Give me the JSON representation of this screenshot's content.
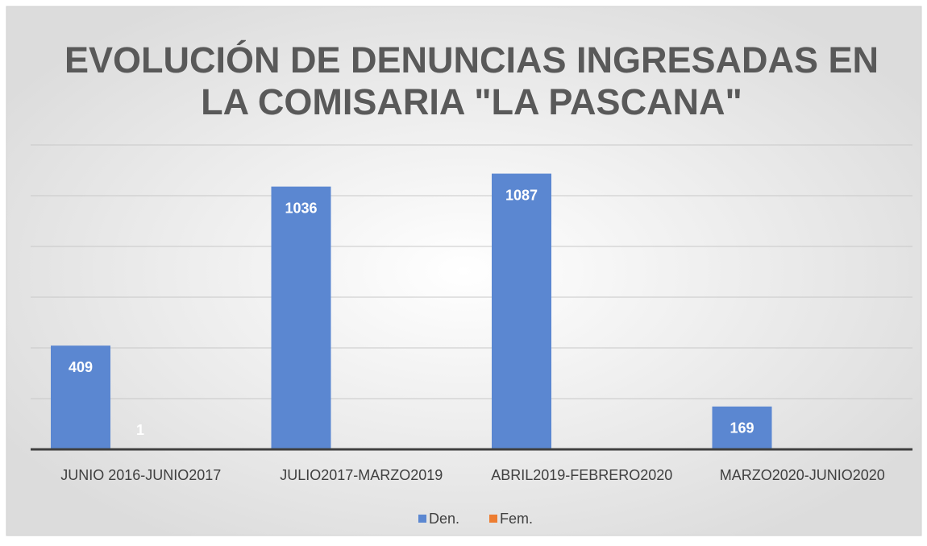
{
  "chart_data": {
    "type": "bar",
    "title": "EVOLUCIÓN DE DENUNCIAS INGRESADAS EN",
    "title_line2": "LA COMISARIA \"LA PASCANA\"",
    "categories": [
      "JUNIO 2016-JUNIO2017",
      "JULIO2017-MARZO2019",
      "ABRIL2019-FEBRERO2020",
      "MARZO2020-JUNIO2020"
    ],
    "series": [
      {
        "name": "Den.",
        "color": "#5b87d1",
        "values": [
          409,
          1036,
          1087,
          169
        ]
      },
      {
        "name": "Fem.",
        "color": "#ed7d31",
        "values": [
          1,
          null,
          null,
          null
        ]
      }
    ],
    "ylim": [
      0,
      1200
    ],
    "yticks": [
      0,
      200,
      400,
      600,
      800,
      1000,
      1200
    ],
    "grid": true,
    "legend": "bottom"
  }
}
